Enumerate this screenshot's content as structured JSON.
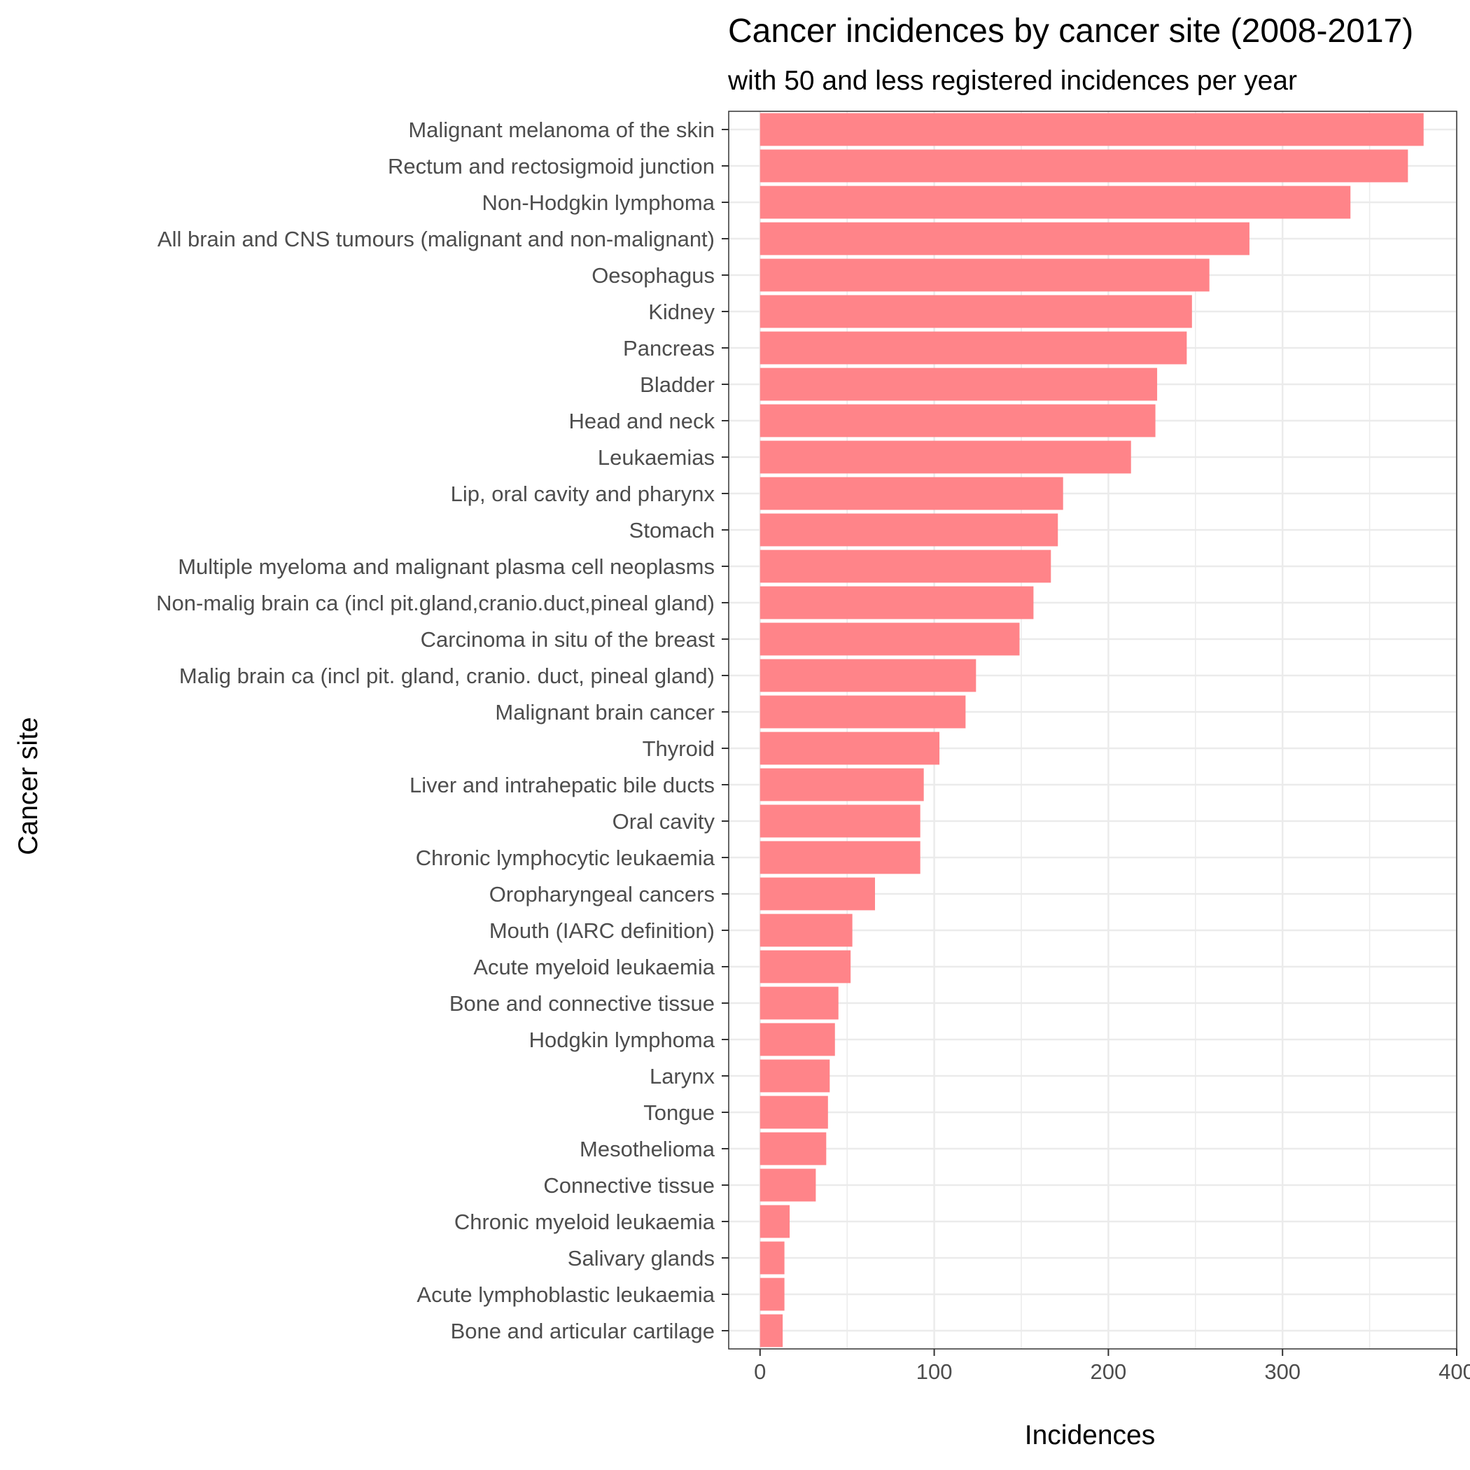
{
  "chart_data": {
    "type": "bar",
    "orientation": "horizontal",
    "title": "Cancer incidences by cancer site (2008-2017)",
    "subtitle": "with 50 and less registered incidences per year",
    "xlabel": "Incidences",
    "ylabel": "Cancer site",
    "xlim": [
      -18,
      400
    ],
    "xticks": [
      "0",
      "100",
      "200",
      "300",
      "400"
    ],
    "grid": true,
    "bar_color": "#FF8489",
    "categories": [
      "Malignant melanoma of the skin",
      "Rectum and rectosigmoid junction",
      "Non-Hodgkin lymphoma",
      "All brain and CNS tumours (malignant and non-malignant)",
      "Oesophagus",
      "Kidney",
      "Pancreas",
      "Bladder",
      "Head and neck",
      "Leukaemias",
      "Lip, oral cavity and pharynx",
      "Stomach",
      "Multiple myeloma and malignant plasma cell neoplasms",
      "Non-malig brain ca (incl pit.gland,cranio.duct,pineal gland)",
      "Carcinoma in situ of the breast",
      "Malig brain ca (incl pit. gland, cranio. duct, pineal gland)",
      "Malignant brain cancer",
      "Thyroid",
      "Liver and intrahepatic bile ducts",
      "Oral cavity",
      "Chronic lymphocytic leukaemia",
      "Oropharyngeal cancers",
      "Mouth (IARC definition)",
      "Acute myeloid leukaemia",
      "Bone and connective tissue",
      "Hodgkin lymphoma",
      "Larynx",
      "Tongue",
      "Mesothelioma",
      "Connective tissue",
      "Chronic myeloid leukaemia",
      "Salivary glands",
      "Acute lymphoblastic leukaemia",
      "Bone and articular cartilage"
    ],
    "values": [
      381,
      372,
      339,
      281,
      258,
      248,
      245,
      228,
      227,
      213,
      174,
      171,
      167,
      157,
      149,
      124,
      118,
      103,
      94,
      92,
      92,
      66,
      53,
      52,
      45,
      43,
      40,
      39,
      38,
      32,
      17,
      14,
      14,
      13
    ]
  }
}
